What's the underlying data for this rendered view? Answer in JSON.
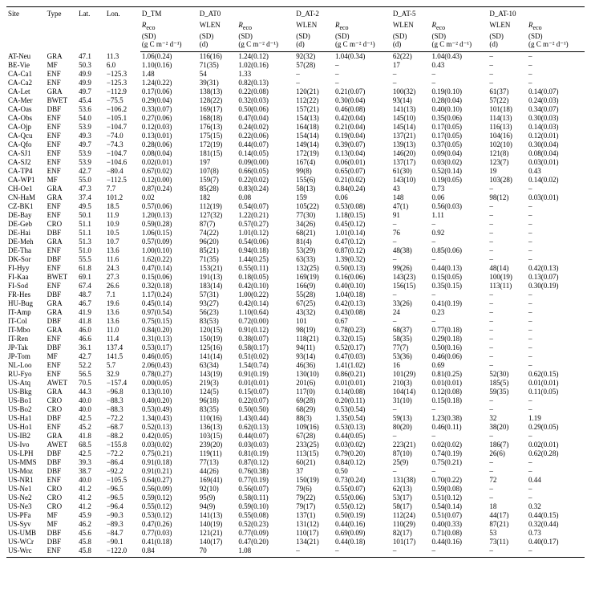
{
  "header": {
    "site": "Site",
    "type": "Type",
    "lat": "Lat.",
    "lon": "Lon.",
    "groups": [
      "D_TM",
      "D_AT0",
      "D_AT-2",
      "D_AT-5",
      "D_AT-10"
    ],
    "reco": "R",
    "reco_sub": "eco",
    "sd": "(SD)",
    "unit": "(g C m⁻² d⁻¹)",
    "wlen": "WLEN",
    "d": "(d)"
  },
  "rows": [
    {
      "site": "AT-Neu",
      "type": "GRA",
      "lat": "47.1",
      "lon": "11.3",
      "tm": "1.06(0.24)",
      "at0w": "116(16)",
      "at0r": "1.24(0.12)",
      "at2w": "92(32)",
      "at2r": "1.04(0.34)",
      "at5w": "62(22)",
      "at5r": "1.04(0.43)",
      "at10w": "–",
      "at10r": "–"
    },
    {
      "site": "BE-Vie",
      "type": "MF",
      "lat": "50.3",
      "lon": "6.0",
      "tm": "1.10(0.16)",
      "at0w": "71(35)",
      "at0r": "1.02(0.16)",
      "at2w": "57(28)",
      "at2r": "–",
      "at5w": "17",
      "at5r": "0.43",
      "at10w": "–",
      "at10r": "–"
    },
    {
      "site": "CA-Ca1",
      "type": "ENF",
      "lat": "49.9",
      "lon": "−125.3",
      "tm": "1.48",
      "at0w": "54",
      "at0r": "1.33",
      "at2w": "–",
      "at2r": "–",
      "at5w": "–",
      "at5r": "–",
      "at10w": "–",
      "at10r": "–"
    },
    {
      "site": "CA-Ca2",
      "type": "ENF",
      "lat": "49.9",
      "lon": "−125.3",
      "tm": "1.24(0.22)",
      "at0w": "39(31)",
      "at0r": "0.82(0.13)",
      "at2w": "–",
      "at2r": "–",
      "at5w": "–",
      "at5r": "–",
      "at10w": "–",
      "at10r": "–"
    },
    {
      "site": "CA-Let",
      "type": "GRA",
      "lat": "49.7",
      "lon": "−112.9",
      "tm": "0.17(0.06)",
      "at0w": "138(13)",
      "at0r": "0.22(0.08)",
      "at2w": "120(21)",
      "at2r": "0.21(0.07)",
      "at5w": "100(32)",
      "at5r": "0.19(0.10)",
      "at10w": "61(37)",
      "at10r": "0.14(0.07)"
    },
    {
      "site": "CA-Mer",
      "type": "BWET",
      "lat": "45.4",
      "lon": "−75.5",
      "tm": "0.29(0.04)",
      "at0w": "128(22)",
      "at0r": "0.32(0.03)",
      "at2w": "112(22)",
      "at2r": "0.30(0.04)",
      "at5w": "93(14)",
      "at5r": "0.28(0.04)",
      "at10w": "57(22)",
      "at10r": "0.24(0.03)"
    },
    {
      "site": "CA-Oas",
      "type": "DBF",
      "lat": "53.6",
      "lon": "−106.2",
      "tm": "0.33(0.07)",
      "at0w": "169(17)",
      "at0r": "0.50(0.06)",
      "at2w": "157(21)",
      "at2r": "0.46(0.08)",
      "at5w": "141(13)",
      "at5r": "0.40(0.10)",
      "at10w": "101(18)",
      "at10r": "0.34(0.07)"
    },
    {
      "site": "CA-Obs",
      "type": "ENF",
      "lat": "54.0",
      "lon": "−105.1",
      "tm": "0.27(0.06)",
      "at0w": "168(18)",
      "at0r": "0.47(0.04)",
      "at2w": "154(13)",
      "at2r": "0.42(0.04)",
      "at5w": "145(10)",
      "at5r": "0.35(0.06)",
      "at10w": "114(13)",
      "at10r": "0.30(0.03)"
    },
    {
      "site": "CA-Ojp",
      "type": "ENF",
      "lat": "53.9",
      "lon": "−104.7",
      "tm": "0.12(0.03)",
      "at0w": "176(13)",
      "at0r": "0.24(0.02)",
      "at2w": "164(18)",
      "at2r": "0.21(0.04)",
      "at5w": "145(14)",
      "at5r": "0.17(0.05)",
      "at10w": "116(13)",
      "at10r": "0.14(0.03)"
    },
    {
      "site": "CA-Qcu",
      "type": "ENF",
      "lat": "49.3",
      "lon": "−74.0",
      "tm": "0.13(0.01)",
      "at0w": "175(15)",
      "at0r": "0.22(0.06)",
      "at2w": "154(14)",
      "at2r": "0.19(0.04)",
      "at5w": "137(21)",
      "at5r": "0.17(0.05)",
      "at10w": "104(16)",
      "at10r": "0.12(0.01)"
    },
    {
      "site": "CA-Qfo",
      "type": "ENF",
      "lat": "49.7",
      "lon": "−74.3",
      "tm": "0.28(0.06)",
      "at0w": "172(19)",
      "at0r": "0.44(0.07)",
      "at2w": "149(14)",
      "at2r": "0.39(0.07)",
      "at5w": "139(13)",
      "at5r": "0.37(0.05)",
      "at10w": "102(10)",
      "at10r": "0.30(0.04)"
    },
    {
      "site": "CA-SJ1",
      "type": "ENF",
      "lat": "53.9",
      "lon": "−104.7",
      "tm": "0.08(0.04)",
      "at0w": "181(15)",
      "at0r": "0.14(0.05)",
      "at2w": "172(19)",
      "at2r": "0.13(0.04)",
      "at5w": "146(20)",
      "at5r": "0.09(0.04)",
      "at10w": "121(8)",
      "at10r": "0.08(0.04)"
    },
    {
      "site": "CA-SJ2",
      "type": "ENF",
      "lat": "53.9",
      "lon": "−104.6",
      "tm": "0.02(0.01)",
      "at0w": "197",
      "at0r": "0.09(0.00)",
      "at2w": "167(4)",
      "at2r": "0.06(0.01)",
      "at5w": "137(17)",
      "at5r": "0.03(0.02)",
      "at10w": "123(7)",
      "at10r": "0.03(0.01)"
    },
    {
      "site": "CA-TP4",
      "type": "ENF",
      "lat": "42.7",
      "lon": "−80.4",
      "tm": "0.67(0.02)",
      "at0w": "107(8)",
      "at0r": "0.66(0.05)",
      "at2w": "99(8)",
      "at2r": "0.65(0.07)",
      "at5w": "61(30)",
      "at5r": "0.52(0.14)",
      "at10w": "19",
      "at10r": "0.43"
    },
    {
      "site": "CA-WP1",
      "type": "MF",
      "lat": "55.0",
      "lon": "−112.5",
      "tm": "0.12(0.00)",
      "at0w": "159(7)",
      "at0r": "0.22(0.02)",
      "at2w": "155(6)",
      "at2r": "0.21(0.02)",
      "at5w": "143(10)",
      "at5r": "0.19(0.05)",
      "at10w": "103(28)",
      "at10r": "0.14(0.02)"
    },
    {
      "site": "CH-Oe1",
      "type": "GRA",
      "lat": "47.3",
      "lon": "7.7",
      "tm": "0.87(0.24)",
      "at0w": "85(28)",
      "at0r": "0.83(0.24)",
      "at2w": "58(13)",
      "at2r": "0.84(0.24)",
      "at5w": "43",
      "at5r": "0.73",
      "at10w": "–",
      "at10r": "–"
    },
    {
      "site": "CN-HaM",
      "type": "GRA",
      "lat": "37.4",
      "lon": "101.2",
      "tm": "0.02",
      "at0w": "182",
      "at0r": "0.08",
      "at2w": "159",
      "at2r": "0.06",
      "at5w": "148",
      "at5r": "0.06",
      "at10w": "98(12)",
      "at10r": "0.03(0.01)"
    },
    {
      "site": "CZ-BK1",
      "type": "ENF",
      "lat": "49.5",
      "lon": "18.5",
      "tm": "0.57(0.06)",
      "at0w": "112(19)",
      "at0r": "0.54(0.07)",
      "at2w": "105(22)",
      "at2r": "0.53(0.08)",
      "at5w": "47(1)",
      "at5r": "0.56(0.03)",
      "at10w": "–",
      "at10r": "–"
    },
    {
      "site": "DE-Bay",
      "type": "ENF",
      "lat": "50.1",
      "lon": "11.9",
      "tm": "1.20(0.13)",
      "at0w": "127(32)",
      "at0r": "1.22(0.21)",
      "at2w": "77(30)",
      "at2r": "1.18(0.15)",
      "at5w": "91",
      "at5r": "1.11",
      "at10w": "–",
      "at10r": "–"
    },
    {
      "site": "DE-Geb",
      "type": "CRO",
      "lat": "51.1",
      "lon": "10.9",
      "tm": "0.59(0.28)",
      "at0w": "87(7)",
      "at0r": "0.57(0.27)",
      "at2w": "34(26)",
      "at2r": "0.45(0.12)",
      "at5w": "–",
      "at5r": "–",
      "at10w": "–",
      "at10r": "–"
    },
    {
      "site": "DE-Hai",
      "type": "DBF",
      "lat": "51.1",
      "lon": "10.5",
      "tm": "1.06(0.15)",
      "at0w": "74(22)",
      "at0r": "1.01(0.12)",
      "at2w": "68(21)",
      "at2r": "1.01(0.14)",
      "at5w": "76",
      "at5r": "0.92",
      "at10w": "–",
      "at10r": "–"
    },
    {
      "site": "DE-Meh",
      "type": "GRA",
      "lat": "51.3",
      "lon": "10.7",
      "tm": "0.57(0.09)",
      "at0w": "96(20)",
      "at0r": "0.54(0.06)",
      "at2w": "81(4)",
      "at2r": "0.47(0.12)",
      "at5w": "–",
      "at5r": "–",
      "at10w": "–",
      "at10r": "–"
    },
    {
      "site": "DE-Tha",
      "type": "ENF",
      "lat": "51.0",
      "lon": "13.6",
      "tm": "1.00(0.10)",
      "at0w": "85(21)",
      "at0r": "0.94(0.18)",
      "at2w": "53(29)",
      "at2r": "0.87(0.12)",
      "at5w": "48(38)",
      "at5r": "0.85(0.06)",
      "at10w": "–",
      "at10r": "–"
    },
    {
      "site": "DK-Sor",
      "type": "DBF",
      "lat": "55.5",
      "lon": "11.6",
      "tm": "1.62(0.22)",
      "at0w": "71(35)",
      "at0r": "1.44(0.25)",
      "at2w": "63(33)",
      "at2r": "1.39(0.32)",
      "at5w": "–",
      "at5r": "–",
      "at10w": "–",
      "at10r": "–"
    },
    {
      "site": "FI-Hyy",
      "type": "ENF",
      "lat": "61.8",
      "lon": "24.3",
      "tm": "0.47(0.14)",
      "at0w": "153(21)",
      "at0r": "0.55(0.11)",
      "at2w": "132(25)",
      "at2r": "0.50(0.13)",
      "at5w": "99(26)",
      "at5r": "0.44(0.13)",
      "at10w": "48(14)",
      "at10r": "0.42(0.13)"
    },
    {
      "site": "FI-Kaa",
      "type": "BWET",
      "lat": "69.1",
      "lon": "27.3",
      "tm": "0.15(0.06)",
      "at0w": "191(13)",
      "at0r": "0.18(0.05)",
      "at2w": "169(19)",
      "at2r": "0.16(0.06)",
      "at5w": "143(23)",
      "at5r": "0.15(0.05)",
      "at10w": "100(19)",
      "at10r": "0.13(0.07)"
    },
    {
      "site": "FI-Sod",
      "type": "ENF",
      "lat": "67.4",
      "lon": "26.6",
      "tm": "0.32(0.18)",
      "at0w": "183(14)",
      "at0r": "0.42(0.10)",
      "at2w": "166(9)",
      "at2r": "0.40(0.10)",
      "at5w": "156(15)",
      "at5r": "0.35(0.15)",
      "at10w": "113(11)",
      "at10r": "0.30(0.19)"
    },
    {
      "site": "FR-Hes",
      "type": "DBF",
      "lat": "48.7",
      "lon": "7.1",
      "tm": "1.17(0.24)",
      "at0w": "57(31)",
      "at0r": "1.00(0.22)",
      "at2w": "55(28)",
      "at2r": "1.04(0.18)",
      "at5w": "–",
      "at5r": "–",
      "at10w": "–",
      "at10r": "–"
    },
    {
      "site": "HU-Bug",
      "type": "GRA",
      "lat": "46.7",
      "lon": "19.6",
      "tm": "0.45(0.14)",
      "at0w": "93(27)",
      "at0r": "0.42(0.14)",
      "at2w": "67(25)",
      "at2r": "0.42(0.13)",
      "at5w": "33(26)",
      "at5r": "0.41(0.19)",
      "at10w": "–",
      "at10r": "–"
    },
    {
      "site": "IT-Amp",
      "type": "GRA",
      "lat": "41.9",
      "lon": "13.6",
      "tm": "0.97(0.54)",
      "at0w": "56(23)",
      "at0r": "1.10(0.64)",
      "at2w": "43(32)",
      "at2r": "0.43(0.08)",
      "at5w": "24",
      "at5r": "0.23",
      "at10w": "–",
      "at10r": "–"
    },
    {
      "site": "IT-Col",
      "type": "DBF",
      "lat": "41.8",
      "lon": "13.6",
      "tm": "0.75(0.15)",
      "at0w": "83(53)",
      "at0r": "0.72(0.00)",
      "at2w": "101",
      "at2r": "0.67",
      "at5w": "–",
      "at5r": "–",
      "at10w": "–",
      "at10r": "–"
    },
    {
      "site": "IT-Mbo",
      "type": "GRA",
      "lat": "46.0",
      "lon": "11.0",
      "tm": "0.84(0.20)",
      "at0w": "120(15)",
      "at0r": "0.91(0.12)",
      "at2w": "98(19)",
      "at2r": "0.78(0.23)",
      "at5w": "68(37)",
      "at5r": "0.77(0.18)",
      "at10w": "–",
      "at10r": "–"
    },
    {
      "site": "IT-Ren",
      "type": "ENF",
      "lat": "46.6",
      "lon": "11.4",
      "tm": "0.31(0.13)",
      "at0w": "150(19)",
      "at0r": "0.38(0.07)",
      "at2w": "118(21)",
      "at2r": "0.32(0.15)",
      "at5w": "58(35)",
      "at5r": "0.29(0.18)",
      "at10w": "–",
      "at10r": "–"
    },
    {
      "site": "JP-Tak",
      "type": "DBF",
      "lat": "36.1",
      "lon": "137.4",
      "tm": "0.53(0.17)",
      "at0w": "125(16)",
      "at0r": "0.58(0.17)",
      "at2w": "94(11)",
      "at2r": "0.52(0.17)",
      "at5w": "77(7)",
      "at5r": "0.50(0.16)",
      "at10w": "–",
      "at10r": "–"
    },
    {
      "site": "JP-Tom",
      "type": "MF",
      "lat": "42.7",
      "lon": "141.5",
      "tm": "0.46(0.05)",
      "at0w": "141(14)",
      "at0r": "0.51(0.02)",
      "at2w": "93(14)",
      "at2r": "0.47(0.03)",
      "at5w": "53(36)",
      "at5r": "0.46(0.06)",
      "at10w": "–",
      "at10r": "–"
    },
    {
      "site": "NL-Loo",
      "type": "ENF",
      "lat": "52.2",
      "lon": "5.7",
      "tm": "2.06(0.43)",
      "at0w": "63(34)",
      "at0r": "1.54(0.74)",
      "at2w": "46(36)",
      "at2r": "1.41(1.02)",
      "at5w": "16",
      "at5r": "0.69",
      "at10w": "–",
      "at10r": "–"
    },
    {
      "site": "RU-Fyo",
      "type": "ENF",
      "lat": "56.5",
      "lon": "32.9",
      "tm": "0.78(0.27)",
      "at0w": "143(19)",
      "at0r": "0.91(0.19)",
      "at2w": "130(10)",
      "at2r": "0.86(0.21)",
      "at5w": "101(29)",
      "at5r": "0.81(0.25)",
      "at10w": "52(30)",
      "at10r": "0.62(0.15)"
    },
    {
      "site": "US-Atq",
      "type": "AWET",
      "lat": "70.5",
      "lon": "−157.4",
      "tm": "0.00(0.05)",
      "at0w": "219(3)",
      "at0r": "0.01(0.01)",
      "at2w": "201(6)",
      "at2r": "0.01(0.01)",
      "at5w": "210(3)",
      "at5r": "0.01(0.01)",
      "at10w": "185(5)",
      "at10r": "0.01(0.01)"
    },
    {
      "site": "US-Bkg",
      "type": "GRA",
      "lat": "44.3",
      "lon": "−96.8",
      "tm": "0.13(0.10)",
      "at0w": "124(5)",
      "at0r": "0.15(0.07)",
      "at2w": "117(0)",
      "at2r": "0.14(0.08)",
      "at5w": "104(14)",
      "at5r": "0.12(0.08)",
      "at10w": "59(35)",
      "at10r": "0.11(0.05)"
    },
    {
      "site": "US-Bo1",
      "type": "CRO",
      "lat": "40.0",
      "lon": "−88.3",
      "tm": "0.40(0.20)",
      "at0w": "96(18)",
      "at0r": "0.22(0.07)",
      "at2w": "69(28)",
      "at2r": "0.20(0.11)",
      "at5w": "31(10)",
      "at5r": "0.15(0.18)",
      "at10w": "–",
      "at10r": "–"
    },
    {
      "site": "US-Bo2",
      "type": "CRO",
      "lat": "40.0",
      "lon": "−88.3",
      "tm": "0.53(0.49)",
      "at0w": "83(35)",
      "at0r": "0.50(0.50)",
      "at2w": "68(29)",
      "at2r": "0.53(0.54)",
      "at5w": "–",
      "at5r": "–",
      "at10w": "–",
      "at10r": "–"
    },
    {
      "site": "US-Ha1",
      "type": "DBF",
      "lat": "42.5",
      "lon": "−72.2",
      "tm": "1.34(0.43)",
      "at0w": "110(16)",
      "at0r": "1.43(0.44)",
      "at2w": "88(3)",
      "at2r": "1.35(0.54)",
      "at5w": "59(13)",
      "at5r": "1.23(0.38)",
      "at10w": "32",
      "at10r": "1.19"
    },
    {
      "site": "US-Ho1",
      "type": "ENF",
      "lat": "45.2",
      "lon": "−68.7",
      "tm": "0.52(0.13)",
      "at0w": "136(13)",
      "at0r": "0.62(0.13)",
      "at2w": "109(16)",
      "at2r": "0.53(0.13)",
      "at5w": "80(20)",
      "at5r": "0.46(0.11)",
      "at10w": "38(20)",
      "at10r": "0.29(0.05)"
    },
    {
      "site": "US-IB2",
      "type": "GRA",
      "lat": "41.8",
      "lon": "−88.2",
      "tm": "0.42(0.05)",
      "at0w": "103(15)",
      "at0r": "0.44(0.07)",
      "at2w": "67(28)",
      "at2r": "0.44(0.05)",
      "at5w": "–",
      "at5r": "–",
      "at10w": "–",
      "at10r": "–"
    },
    {
      "site": "US-Ivo",
      "type": "AWET",
      "lat": "68.5",
      "lon": "−155.8",
      "tm": "0.03(0.02)",
      "at0w": "239(20)",
      "at0r": "0.03(0.03)",
      "at2w": "233(25)",
      "at2r": "0.03(0.02)",
      "at5w": "223(21)",
      "at5r": "0.02(0.02)",
      "at10w": "186(7)",
      "at10r": "0.02(0.01)"
    },
    {
      "site": "US-LPH",
      "type": "DBF",
      "lat": "42.5",
      "lon": "−72.2",
      "tm": "0.75(0.21)",
      "at0w": "119(11)",
      "at0r": "0.81(0.19)",
      "at2w": "113(15)",
      "at2r": "0.79(0.20)",
      "at5w": "87(10)",
      "at5r": "0.74(0.19)",
      "at10w": "26(6)",
      "at10r": "0.62(0.28)"
    },
    {
      "site": "US-MMS",
      "type": "DBF",
      "lat": "39.3",
      "lon": "−86.4",
      "tm": "0.91(0.18)",
      "at0w": "77(13)",
      "at0r": "0.87(0.12)",
      "at2w": "60(21)",
      "at2r": "0.84(0.12)",
      "at5w": "25(9)",
      "at5r": "0.75(0.21)",
      "at10w": "–",
      "at10r": "–"
    },
    {
      "site": "US-Moz",
      "type": "DBF",
      "lat": "38.7",
      "lon": "−92.2",
      "tm": "0.91(0.21)",
      "at0w": "44(26)",
      "at0r": "0.76(0.38)",
      "at2w": "37",
      "at2r": "0.50",
      "at5w": "–",
      "at5r": "–",
      "at10w": "–",
      "at10r": "–"
    },
    {
      "site": "US-NR1",
      "type": "ENF",
      "lat": "40.0",
      "lon": "−105.5",
      "tm": "0.64(0.27)",
      "at0w": "169(41)",
      "at0r": "0.77(0.19)",
      "at2w": "150(19)",
      "at2r": "0.73(0.24)",
      "at5w": "131(38)",
      "at5r": "0.70(0.22)",
      "at10w": "72",
      "at10r": "0.44"
    },
    {
      "site": "US-Ne1",
      "type": "CRO",
      "lat": "41.2",
      "lon": "−96.5",
      "tm": "0.56(0.09)",
      "at0w": "92(10)",
      "at0r": "0.56(0.07)",
      "at2w": "79(6)",
      "at2r": "0.55(0.07)",
      "at5w": "62(13)",
      "at5r": "0.59(0.08)",
      "at10w": "–",
      "at10r": "–"
    },
    {
      "site": "US-Ne2",
      "type": "CRO",
      "lat": "41.2",
      "lon": "−96.5",
      "tm": "0.59(0.12)",
      "at0w": "95(9)",
      "at0r": "0.58(0.11)",
      "at2w": "79(22)",
      "at2r": "0.55(0.06)",
      "at5w": "53(17)",
      "at5r": "0.51(0.12)",
      "at10w": "–",
      "at10r": "–"
    },
    {
      "site": "US-Ne3",
      "type": "CRO",
      "lat": "41.2",
      "lon": "−96.4",
      "tm": "0.55(0.12)",
      "at0w": "94(9)",
      "at0r": "0.59(0.10)",
      "at2w": "79(17)",
      "at2r": "0.55(0.12)",
      "at5w": "58(17)",
      "at5r": "0.54(0.14)",
      "at10w": "18",
      "at10r": "0.32"
    },
    {
      "site": "US-PFa",
      "type": "MF",
      "lat": "45.9",
      "lon": "−90.3",
      "tm": "0.53(0.12)",
      "at0w": "141(13)",
      "at0r": "0.55(0.08)",
      "at2w": "137(1)",
      "at2r": "0.50(0.19)",
      "at5w": "112(24)",
      "at5r": "0.51(0.07)",
      "at10w": "44(17)",
      "at10r": "0.44(0.15)"
    },
    {
      "site": "US-Syv",
      "type": "MF",
      "lat": "46.2",
      "lon": "−89.3",
      "tm": "0.47(0.26)",
      "at0w": "140(19)",
      "at0r": "0.52(0.23)",
      "at2w": "131(12)",
      "at2r": "0.44(0.16)",
      "at5w": "110(29)",
      "at5r": "0.40(0.33)",
      "at10w": "87(21)",
      "at10r": "0.32(0.44)"
    },
    {
      "site": "US-UMB",
      "type": "DBF",
      "lat": "45.6",
      "lon": "−84.7",
      "tm": "0.77(0.03)",
      "at0w": "121(21)",
      "at0r": "0.77(0.09)",
      "at2w": "110(17)",
      "at2r": "0.69(0.09)",
      "at5w": "82(17)",
      "at5r": "0.71(0.08)",
      "at10w": "53",
      "at10r": "0.73"
    },
    {
      "site": "US-WCr",
      "type": "DBF",
      "lat": "45.8",
      "lon": "−90.1",
      "tm": "0.41(0.18)",
      "at0w": "140(17)",
      "at0r": "0.47(0.20)",
      "at2w": "134(21)",
      "at2r": "0.44(0.18)",
      "at5w": "101(17)",
      "at5r": "0.44(0.16)",
      "at10w": "73(11)",
      "at10r": "0.40(0.17)"
    },
    {
      "site": "US-Wrc",
      "type": "ENF",
      "lat": "45.8",
      "lon": "−122.0",
      "tm": "0.84",
      "at0w": "70",
      "at0r": "1.08",
      "at2w": "–",
      "at2r": "–",
      "at5w": "–",
      "at5r": "–",
      "at10w": "–",
      "at10r": "–"
    }
  ]
}
